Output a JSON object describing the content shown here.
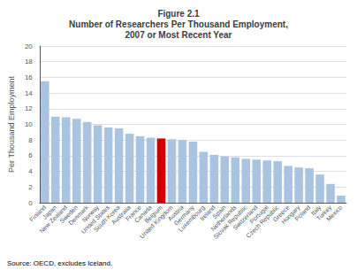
{
  "chart_data": {
    "type": "bar",
    "title": "Figure 2.1\nNumber of Researchers Per Thousand Employment,\n2007 or Most Recent Year",
    "ylabel": "Per Thousand Employment",
    "source": "Source: OECD, excludes Iceland.",
    "categories": [
      "Finland",
      "Japan",
      "New Zealand",
      "Sweden",
      "Denmark",
      "Norway",
      "United States",
      "South Korea",
      "Australia",
      "France",
      "Canada",
      "Belgium",
      "United Kingdom",
      "Austria",
      "Germany",
      "Luxembourg",
      "Ireland",
      "Spain",
      "Netherlands",
      "Slovak Republic",
      "Switzerland",
      "Portugal",
      "Czech Republic",
      "Greece",
      "Hungary",
      "Poland",
      "Italy",
      "Turkey",
      "Mexico"
    ],
    "values": [
      15.5,
      11.0,
      10.9,
      10.7,
      10.3,
      9.9,
      9.6,
      9.5,
      8.8,
      8.5,
      8.3,
      8.2,
      8.1,
      8.0,
      7.8,
      6.5,
      6.1,
      5.9,
      5.8,
      5.6,
      5.5,
      5.4,
      5.3,
      4.7,
      4.5,
      4.4,
      3.6,
      2.4,
      0.9
    ],
    "colors": [
      "#a8c4e0",
      "#a8c4e0",
      "#a8c4e0",
      "#a8c4e0",
      "#a8c4e0",
      "#a8c4e0",
      "#a8c4e0",
      "#a8c4e0",
      "#a8c4e0",
      "#a8c4e0",
      "#a8c4e0",
      "#cc0000",
      "#a8c4e0",
      "#a8c4e0",
      "#a8c4e0",
      "#a8c4e0",
      "#a8c4e0",
      "#a8c4e0",
      "#a8c4e0",
      "#a8c4e0",
      "#a8c4e0",
      "#a8c4e0",
      "#a8c4e0",
      "#a8c4e0",
      "#a8c4e0",
      "#a8c4e0",
      "#a8c4e0",
      "#a8c4e0",
      "#a8c4e0"
    ],
    "ylim": [
      0,
      20
    ],
    "yticks": [
      0,
      2,
      4,
      6,
      8,
      10,
      12,
      14,
      16,
      18,
      20
    ],
    "grid": true
  }
}
